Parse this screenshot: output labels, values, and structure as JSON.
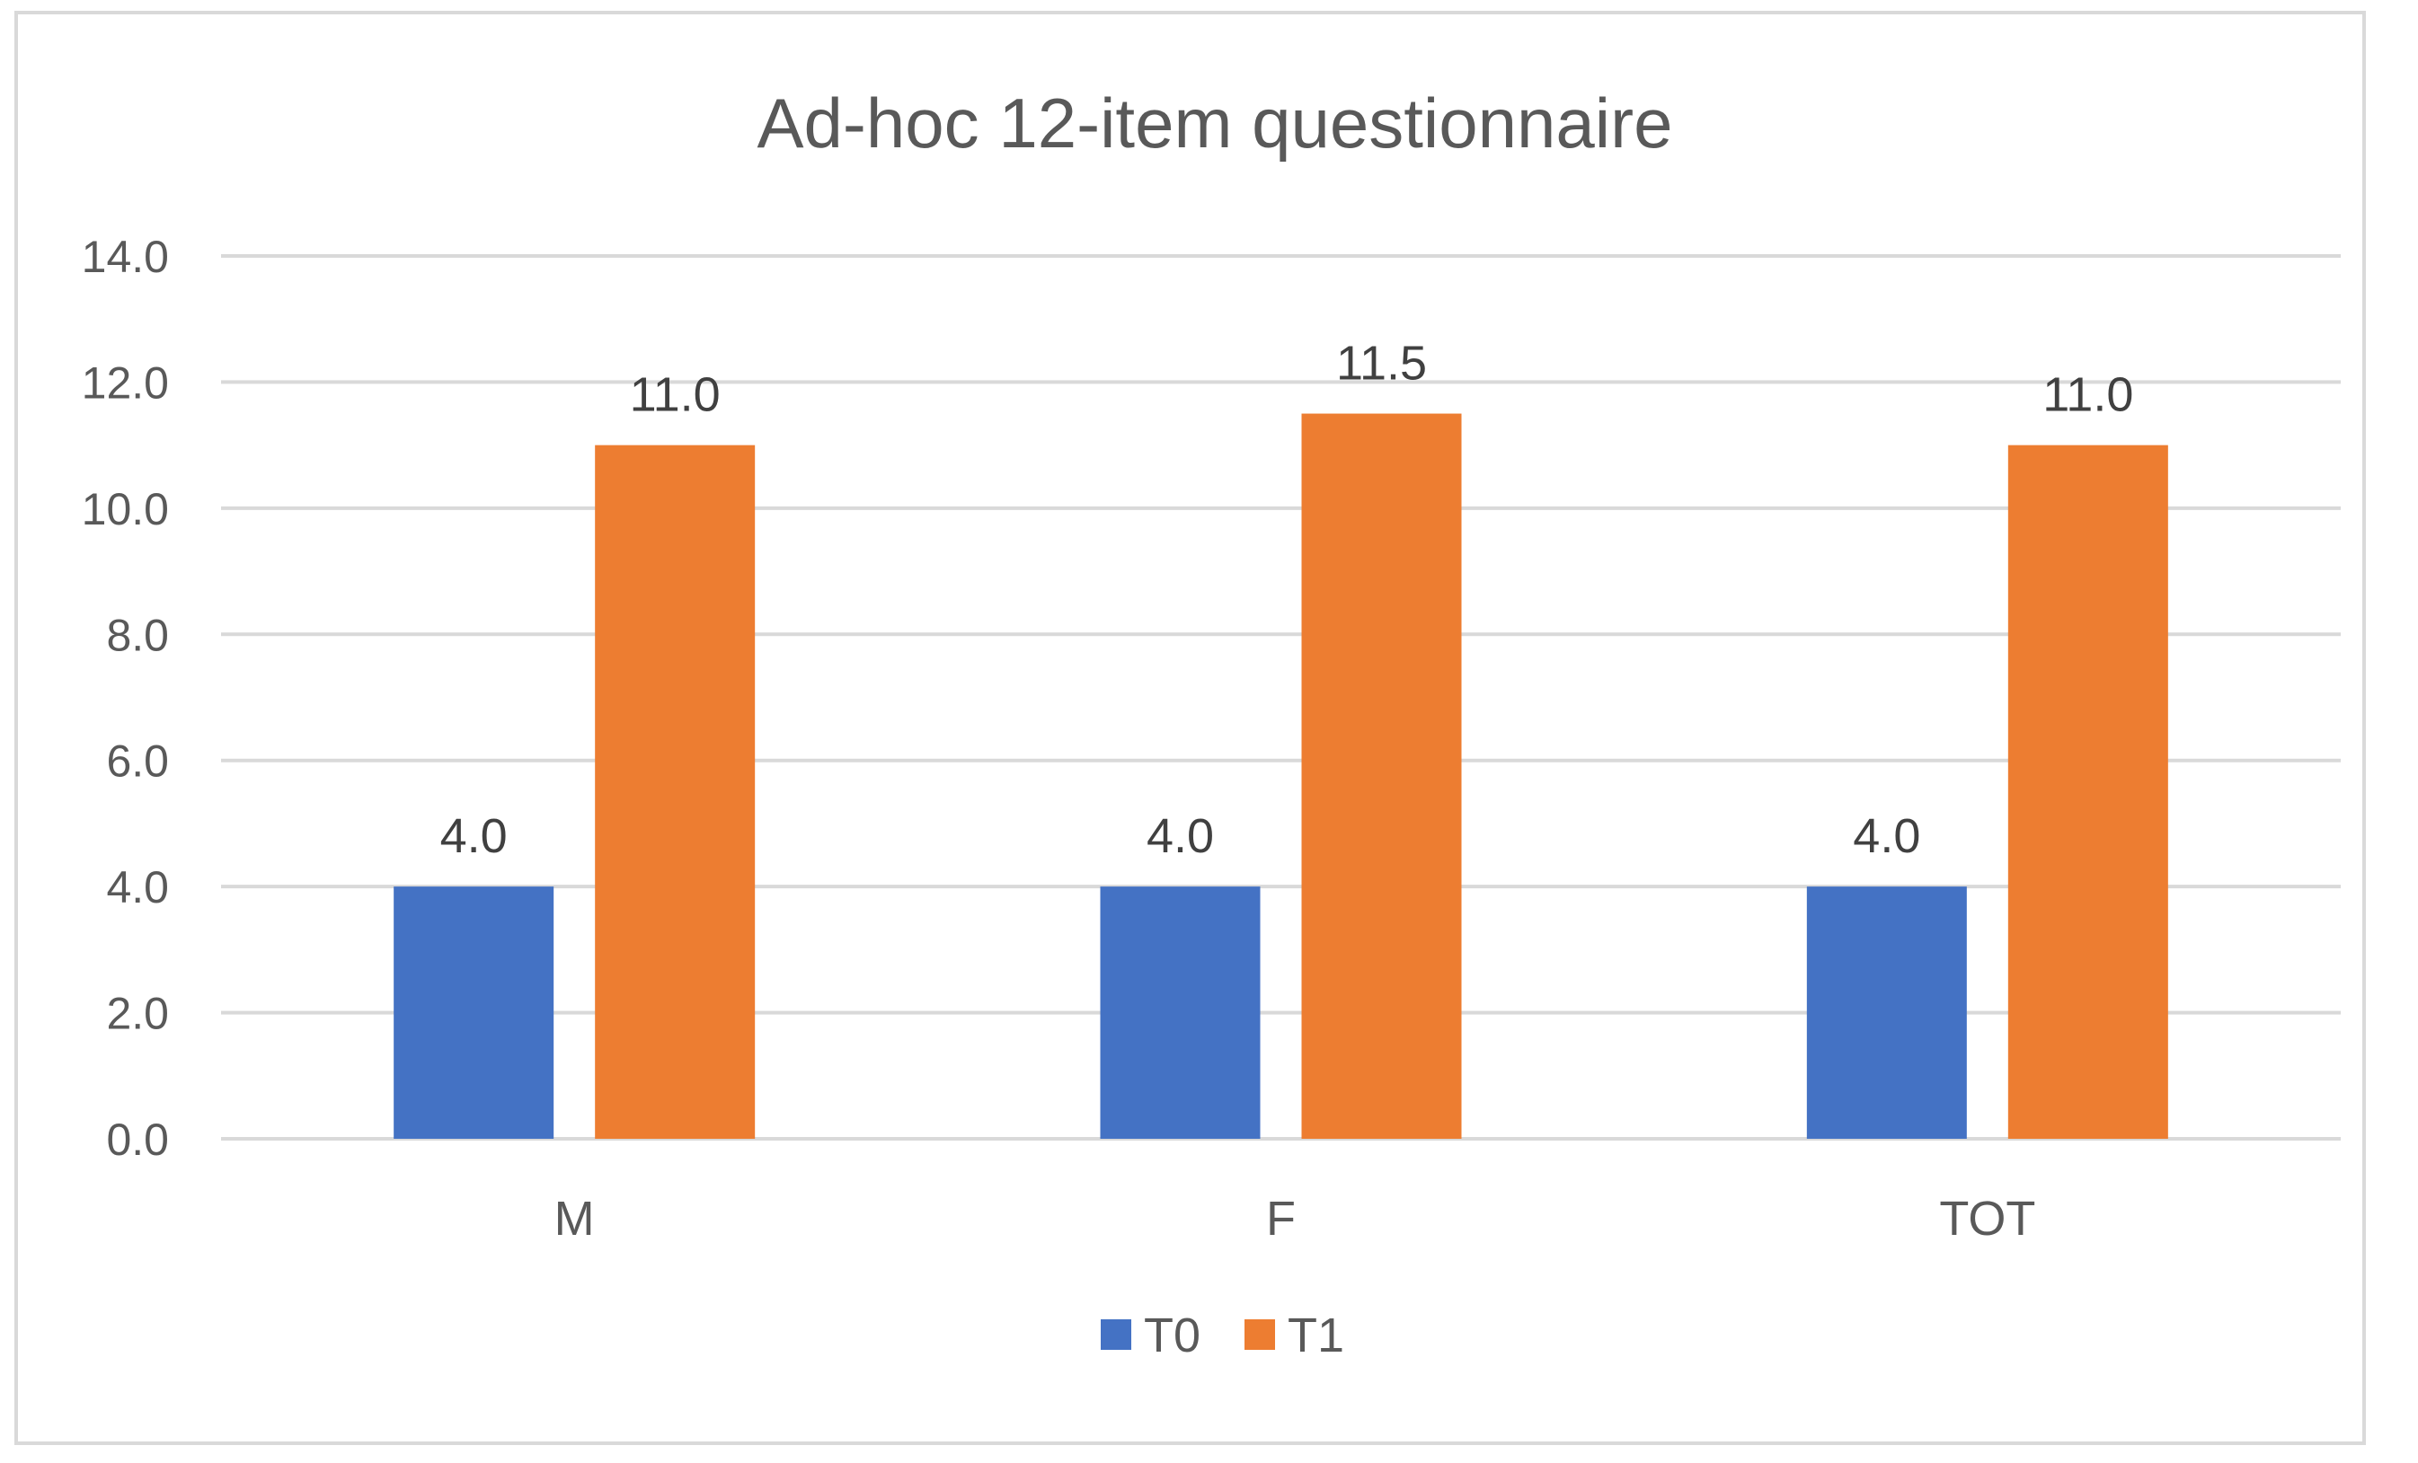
{
  "chart_data": {
    "type": "bar",
    "title": "Ad-hoc 12-item questionnaire",
    "categories": [
      "M",
      "F",
      "TOT"
    ],
    "series": [
      {
        "name": "T0",
        "values": [
          4.0,
          4.0,
          4.0
        ],
        "color": "#4472c4"
      },
      {
        "name": "T1",
        "values": [
          11.0,
          11.5,
          11.0
        ],
        "color": "#ed7d31"
      }
    ],
    "y_ticks": [
      "0.0",
      "2.0",
      "4.0",
      "6.0",
      "8.0",
      "10.0",
      "12.0",
      "14.0"
    ],
    "ylim": [
      0,
      14
    ],
    "grid": true,
    "legend_position": "bottom",
    "value_format_decimals": 1
  }
}
